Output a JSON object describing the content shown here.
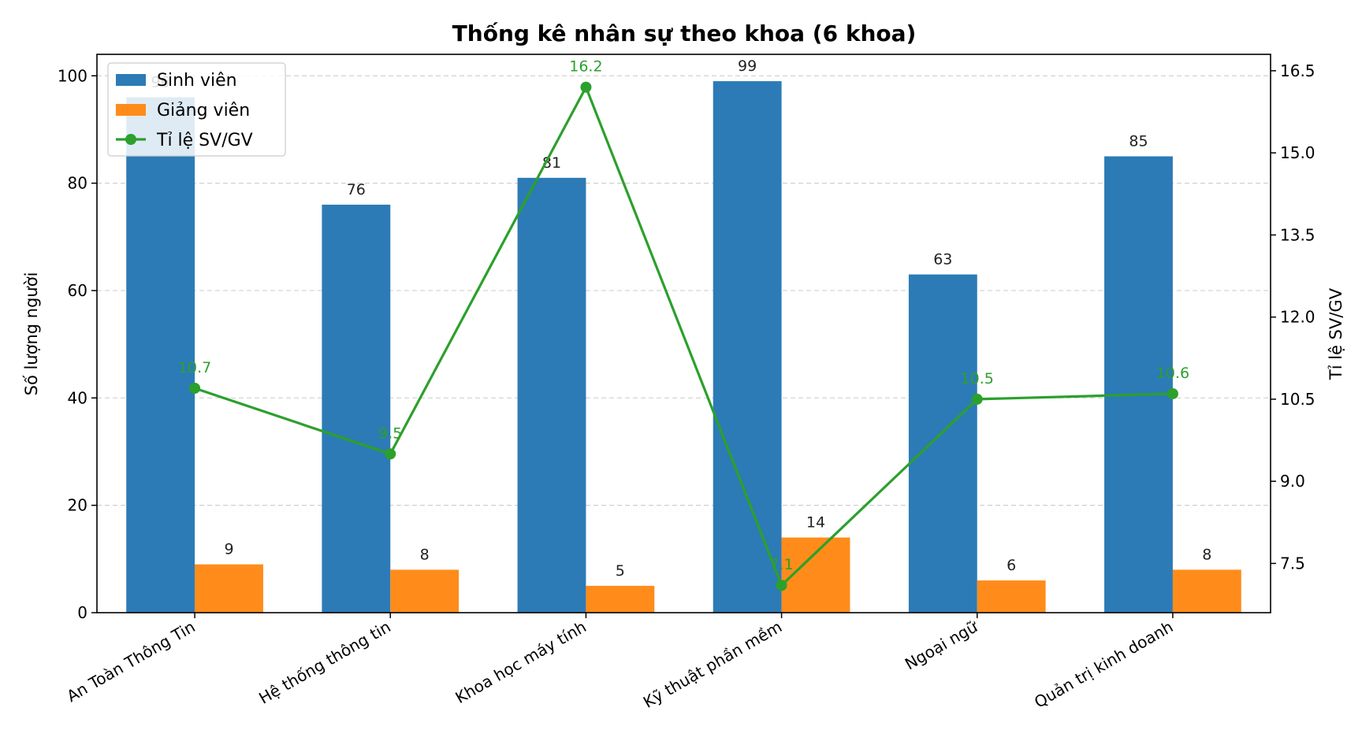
{
  "chart_data": {
    "type": "bar",
    "title": "Thống kê nhân sự theo khoa (6 khoa)",
    "ylabel": "Số lượng người",
    "y2label": "Tỉ lệ SV/GV",
    "categories": [
      "An Toàn Thông Tin",
      "Hệ thống thông tin",
      "Khoa học máy tính",
      "Kỹ thuật phần mềm",
      "Ngoại ngữ",
      "Quản trị kinh doanh"
    ],
    "ylim": [
      0,
      104
    ],
    "yticks": [
      0,
      20,
      40,
      60,
      80,
      100
    ],
    "y2lim": [
      6.6,
      16.8
    ],
    "y2ticks": [
      7.5,
      9.0,
      10.5,
      12.0,
      13.5,
      15.0,
      16.5
    ],
    "y2tick_labels": [
      "7.5",
      "9.0",
      "10.5",
      "12.0",
      "13.5",
      "15.0",
      "16.5"
    ],
    "grid": "horizontal dashed",
    "legend_position": "top-left",
    "series": [
      {
        "name": "Sinh viên",
        "type": "bar",
        "axis": "left",
        "color": "#2c7bb6",
        "values": [
          96,
          76,
          81,
          99,
          63,
          85
        ],
        "labels": [
          "96",
          "76",
          "81",
          "99",
          "63",
          "85"
        ]
      },
      {
        "name": "Giảng viên",
        "type": "bar",
        "axis": "left",
        "color": "#ff8c1a",
        "values": [
          9,
          8,
          5,
          14,
          6,
          8
        ],
        "labels": [
          "9",
          "8",
          "5",
          "14",
          "6",
          "8"
        ]
      },
      {
        "name": "Tỉ lệ SV/GV",
        "type": "line",
        "axis": "right",
        "color": "#2ca02c",
        "values": [
          10.7,
          9.5,
          16.2,
          7.1,
          10.5,
          10.6
        ],
        "labels": [
          "10.7",
          "9.5",
          "16.2",
          "7.1",
          "10.5",
          "10.6"
        ]
      }
    ]
  }
}
